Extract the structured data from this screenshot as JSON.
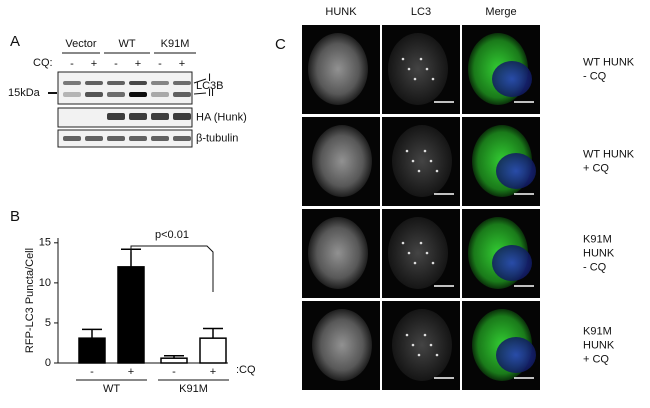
{
  "panels": {
    "a": {
      "label": "A",
      "groups": [
        "Vector",
        "WT",
        "K91M"
      ],
      "cq_label": "CQ:",
      "lane_signs": [
        "-",
        "+",
        "-",
        "+",
        "-",
        "+"
      ],
      "marker": "15kDa",
      "band_forms": [
        "I",
        "II"
      ],
      "blot_labels": [
        "LC3B",
        "HA (Hunk)",
        "β-tubulin"
      ]
    },
    "b": {
      "label": "B",
      "groups": [
        "WT",
        "K91M"
      ],
      "cq_label": ":CQ",
      "annotation": "p<0.01"
    },
    "c": {
      "label": "C",
      "columns": [
        "HUNK",
        "LC3",
        "Merge"
      ],
      "rows": [
        [
          "WT HUNK",
          "- CQ"
        ],
        [
          "WT HUNK",
          "+ CQ"
        ],
        [
          "K91M",
          "HUNK",
          "- CQ"
        ],
        [
          "K91M",
          "HUNK",
          "+ CQ"
        ]
      ]
    }
  },
  "chart_data": {
    "type": "bar",
    "y_label": "RFP-LC3 Puncta/Cell",
    "categories": [
      "-",
      "+",
      "-",
      "+"
    ],
    "values": [
      3.1,
      12,
      0.6,
      3.1
    ],
    "errors": [
      1.1,
      2.2,
      0.3,
      1.2
    ],
    "colors": [
      "#000000",
      "#000000",
      "#ffffff",
      "#ffffff"
    ],
    "ylim": [
      0,
      15.6
    ],
    "yticks": [
      0,
      5,
      10,
      15
    ]
  }
}
